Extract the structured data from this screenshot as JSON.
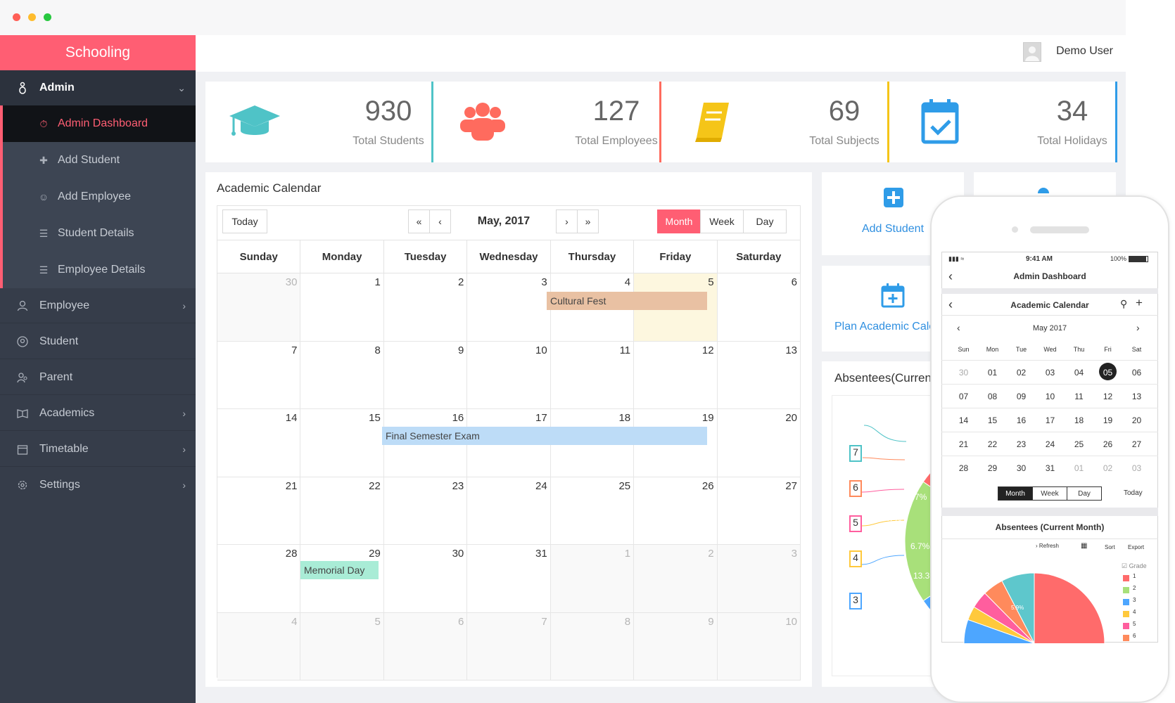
{
  "app": {
    "brand": "Schooling",
    "user": "Demo User"
  },
  "sidebar": {
    "admin": {
      "label": "Admin"
    },
    "admin_items": [
      {
        "label": "Admin Dashboard",
        "icon": "dashboard-icon",
        "active": true
      },
      {
        "label": "Add Student",
        "icon": "add-user-icon"
      },
      {
        "label": "Add Employee",
        "icon": "add-employee-icon"
      },
      {
        "label": "Student Details",
        "icon": "student-details-icon"
      },
      {
        "label": "Employee Details",
        "icon": "employee-details-icon"
      }
    ],
    "items": [
      {
        "label": "Employee",
        "icon": "person-icon",
        "has_children": true
      },
      {
        "label": "Student",
        "icon": "student-icon",
        "has_children": false
      },
      {
        "label": "Parent",
        "icon": "parent-icon",
        "has_children": false
      },
      {
        "label": "Academics",
        "icon": "book-icon",
        "has_children": true
      },
      {
        "label": "Timetable",
        "icon": "calendar-icon",
        "has_children": true
      },
      {
        "label": "Settings",
        "icon": "gear-icon",
        "has_children": true
      }
    ]
  },
  "stats": [
    {
      "value": "930",
      "label": "Total Students",
      "icon": "graduation-cap-icon",
      "color": "#4fc3c7"
    },
    {
      "value": "127",
      "label": "Total Employees",
      "icon": "group-icon",
      "color": "#ff6b5e"
    },
    {
      "value": "69",
      "label": "Total Subjects",
      "icon": "book-icon",
      "color": "#f5c518"
    },
    {
      "value": "34",
      "label": "Total Holidays",
      "icon": "calendar-check-icon",
      "color": "#2f9ce8"
    }
  ],
  "calendar": {
    "title": "Academic Calendar",
    "month_label": "May, 2017",
    "today_btn": "Today",
    "views": [
      "Month",
      "Week",
      "Day"
    ],
    "active_view": "Month",
    "days": [
      "Sunday",
      "Monday",
      "Tuesday",
      "Wednesday",
      "Thursday",
      "Friday",
      "Saturday"
    ],
    "weeks": [
      [
        [
          "30",
          true
        ],
        [
          "1",
          false
        ],
        [
          "2",
          false
        ],
        [
          "3",
          false
        ],
        [
          "4",
          false
        ],
        [
          "5",
          false
        ],
        [
          "6",
          false
        ]
      ],
      [
        [
          "7",
          false
        ],
        [
          "8",
          false
        ],
        [
          "9",
          false
        ],
        [
          "10",
          false
        ],
        [
          "11",
          false
        ],
        [
          "12",
          false
        ],
        [
          "13",
          false
        ]
      ],
      [
        [
          "14",
          false
        ],
        [
          "15",
          false
        ],
        [
          "16",
          false
        ],
        [
          "17",
          false
        ],
        [
          "18",
          false
        ],
        [
          "19",
          false
        ],
        [
          "20",
          false
        ]
      ],
      [
        [
          "21",
          false
        ],
        [
          "22",
          false
        ],
        [
          "23",
          false
        ],
        [
          "24",
          false
        ],
        [
          "25",
          false
        ],
        [
          "26",
          false
        ],
        [
          "27",
          false
        ]
      ],
      [
        [
          "28",
          false
        ],
        [
          "29",
          false
        ],
        [
          "30",
          false
        ],
        [
          "31",
          false
        ],
        [
          "1",
          true
        ],
        [
          "2",
          true
        ],
        [
          "3",
          true
        ]
      ],
      [
        [
          "4",
          true
        ],
        [
          "5",
          true
        ],
        [
          "6",
          true
        ],
        [
          "7",
          true
        ],
        [
          "8",
          true
        ],
        [
          "9",
          true
        ],
        [
          "10",
          true
        ]
      ]
    ],
    "events": [
      {
        "label": "Cultural Fest",
        "color": "#e9c1a3"
      },
      {
        "label": "Final Semester Exam",
        "color": "#bddcf7"
      },
      {
        "label": "Memorial Day",
        "color": "#a9ecd6"
      }
    ]
  },
  "quick_actions": {
    "add_student": "Add Student",
    "plan_calendar": "Plan Academic Cale"
  },
  "absentees": {
    "title": "Absentees(Current",
    "callouts": [
      "7",
      "6",
      "5",
      "4",
      "3"
    ],
    "slice_labels": [
      "6.7%",
      "6.7%",
      "6.7%",
      "13.3"
    ]
  },
  "phone": {
    "status_time": "9:41 AM",
    "battery": "100%",
    "title": "Admin Dashboard",
    "cal_title": "Academic Calendar",
    "month": "May 2017",
    "days": [
      "Sun",
      "Mon",
      "Tue",
      "Wed",
      "Thu",
      "Fri",
      "Sat"
    ],
    "weeks": [
      [
        "30",
        "01",
        "02",
        "03",
        "04",
        "05",
        "06"
      ],
      [
        "07",
        "08",
        "09",
        "10",
        "11",
        "12",
        "13"
      ],
      [
        "14",
        "15",
        "16",
        "17",
        "18",
        "19",
        "20"
      ],
      [
        "21",
        "22",
        "23",
        "24",
        "25",
        "26",
        "27"
      ],
      [
        "28",
        "29",
        "30",
        "31",
        "01",
        "02",
        "03"
      ]
    ],
    "views": [
      "Month",
      "Week",
      "Day"
    ],
    "today": "Today",
    "abs_title": "Absentees (Current Month)",
    "toolbar": [
      "Refresh",
      "Sort",
      "Export"
    ],
    "legend_title": "Grade",
    "legend": [
      "1",
      "2",
      "3",
      "4",
      "5",
      "6"
    ],
    "legend_colors": [
      "#ff6b6b",
      "#a8e07a",
      "#4da6ff",
      "#ffc93c",
      "#ff5e9e",
      "#ff8a5c"
    ],
    "slice_label": "5.9%"
  }
}
